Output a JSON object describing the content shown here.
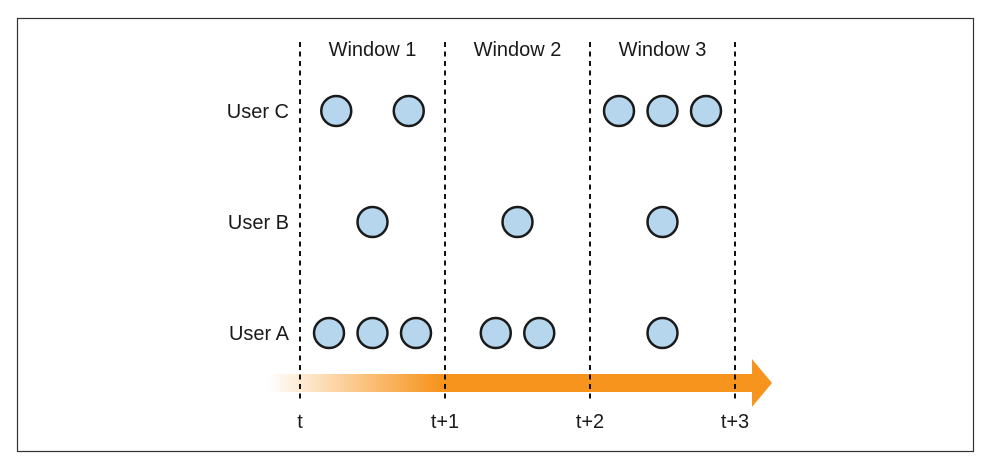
{
  "colors": {
    "event_fill": "#b6d6ee",
    "event_stroke": "#1a1a1a",
    "arrow_start": "#ffffff",
    "arrow_end": "#f7941e",
    "divider": "#111111",
    "frame": "#333333"
  },
  "windows": [
    {
      "label": "Window 1"
    },
    {
      "label": "Window 2"
    },
    {
      "label": "Window 3"
    }
  ],
  "boundaries": [
    {
      "label": "t"
    },
    {
      "label": "t+1"
    },
    {
      "label": "t+2"
    },
    {
      "label": "t+3"
    }
  ],
  "users": [
    {
      "label": "User C",
      "events": [
        [
          0,
          0.25
        ],
        [
          0,
          0.75
        ],
        [
          2,
          0.2
        ],
        [
          2,
          0.5
        ],
        [
          2,
          0.8
        ]
      ]
    },
    {
      "label": "User B",
      "events": [
        [
          0,
          0.5
        ],
        [
          1,
          0.5
        ],
        [
          2,
          0.5
        ]
      ]
    },
    {
      "label": "User A",
      "events": [
        [
          0,
          0.2
        ],
        [
          0,
          0.5
        ],
        [
          0,
          0.8
        ],
        [
          1,
          0.35
        ],
        [
          1,
          0.65
        ],
        [
          2,
          0.5
        ]
      ]
    }
  ],
  "time_arrow": {
    "icon": "arrow-right-icon"
  }
}
